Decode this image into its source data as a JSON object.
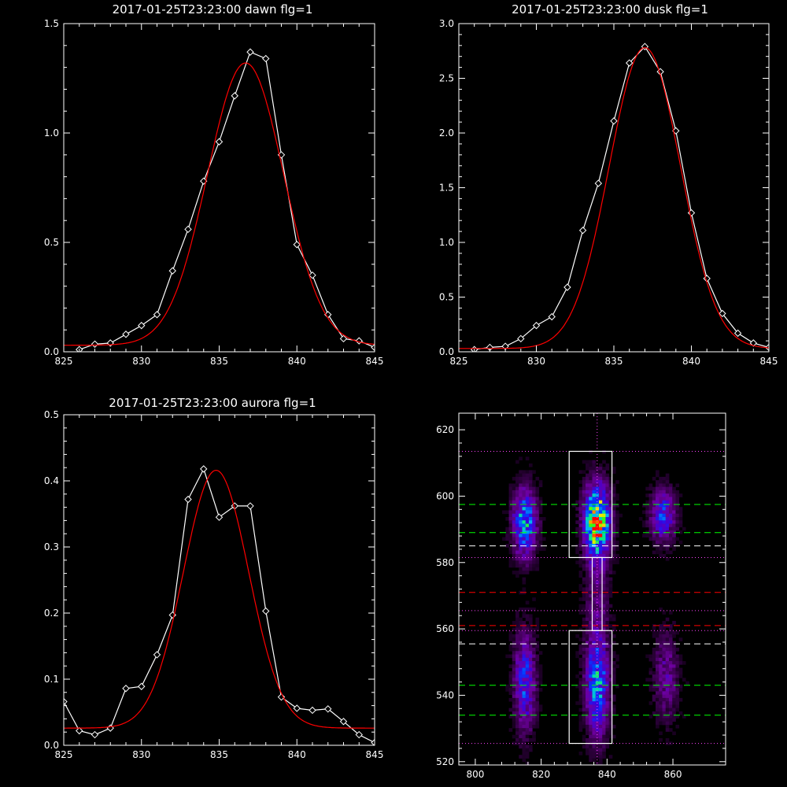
{
  "chart_data": [
    {
      "type": "line",
      "title": "2017-01-25T23:23:00 dawn flg=1",
      "xlim": [
        825,
        845
      ],
      "ylim": [
        0,
        1.5
      ],
      "xticks": [
        "825",
        "830",
        "835",
        "840",
        "845"
      ],
      "yticks": [
        "0.0",
        "0.5",
        "1.0",
        "1.5"
      ],
      "xtick_values": [
        825,
        830,
        835,
        840,
        845
      ],
      "ytick_values": [
        0,
        0.5,
        1.0,
        1.5
      ],
      "series": [
        {
          "style": "data",
          "color": "#ffffff",
          "x": [
            826,
            827,
            828,
            829,
            830,
            831,
            832,
            833,
            834,
            835,
            836,
            837,
            838,
            839,
            840,
            841,
            842,
            843,
            844,
            845
          ],
          "y": [
            0.01,
            0.035,
            0.04,
            0.08,
            0.12,
            0.17,
            0.37,
            0.56,
            0.78,
            0.96,
            1.17,
            1.37,
            1.34,
            0.9,
            0.49,
            0.35,
            0.17,
            0.06,
            0.05,
            0.02
          ]
        },
        {
          "style": "fit",
          "color": "#ff0000",
          "gauss": {
            "amp": 1.29,
            "center": 836.7,
            "sigma": 2.45,
            "offset": 0.03
          }
        }
      ]
    },
    {
      "type": "line",
      "title": "2017-01-25T23:23:00 dusk flg=1",
      "xlim": [
        825,
        845
      ],
      "ylim": [
        0,
        3.0
      ],
      "xticks": [
        "825",
        "830",
        "835",
        "840",
        "845"
      ],
      "yticks": [
        "0.0",
        "0.5",
        "1.0",
        "1.5",
        "2.0",
        "2.5",
        "3.0"
      ],
      "xtick_values": [
        825,
        830,
        835,
        840,
        845
      ],
      "ytick_values": [
        0,
        0.5,
        1.0,
        1.5,
        2.0,
        2.5,
        3.0
      ],
      "series": [
        {
          "style": "data",
          "color": "#ffffff",
          "x": [
            826,
            827,
            828,
            829,
            830,
            831,
            832,
            833,
            834,
            835,
            836,
            837,
            838,
            839,
            840,
            841,
            842,
            843,
            844,
            845
          ],
          "y": [
            0.02,
            0.04,
            0.05,
            0.12,
            0.24,
            0.32,
            0.59,
            1.11,
            1.54,
            2.11,
            2.64,
            2.79,
            2.56,
            2.02,
            1.27,
            0.67,
            0.35,
            0.17,
            0.08,
            0.04
          ]
        },
        {
          "style": "fit",
          "color": "#ff0000",
          "gauss": {
            "amp": 2.75,
            "center": 837.0,
            "sigma": 2.3,
            "offset": 0.03
          }
        }
      ]
    },
    {
      "type": "line",
      "title": "2017-01-25T23:23:00 aurora flg=1",
      "xlim": [
        825,
        845
      ],
      "ylim": [
        0,
        0.5
      ],
      "xticks": [
        "825",
        "830",
        "835",
        "840",
        "845"
      ],
      "yticks": [
        "0.0",
        "0.1",
        "0.2",
        "0.3",
        "0.4",
        "0.5"
      ],
      "xtick_values": [
        825,
        830,
        835,
        840,
        845
      ],
      "ytick_values": [
        0,
        0.1,
        0.2,
        0.3,
        0.4,
        0.5
      ],
      "series": [
        {
          "style": "data",
          "color": "#ffffff",
          "x": [
            825,
            826,
            827,
            828,
            829,
            830,
            831,
            832,
            833,
            834,
            835,
            836,
            837,
            838,
            839,
            840,
            841,
            842,
            843,
            844,
            845
          ],
          "y": [
            0.066,
            0.022,
            0.016,
            0.026,
            0.086,
            0.089,
            0.137,
            0.197,
            0.372,
            0.418,
            0.345,
            0.362,
            0.362,
            0.203,
            0.073,
            0.056,
            0.053,
            0.055,
            0.036,
            0.016,
            0.004
          ]
        },
        {
          "style": "fit",
          "color": "#ff0000",
          "gauss": {
            "amp": 0.39,
            "center": 834.8,
            "sigma": 2.1,
            "offset": 0.026
          }
        }
      ]
    },
    {
      "type": "heatmap",
      "xlim": [
        795,
        876
      ],
      "ylim": [
        519,
        625
      ],
      "xticks": [
        "800",
        "820",
        "840",
        "860"
      ],
      "yticks": [
        "520",
        "540",
        "560",
        "580",
        "600",
        "620"
      ],
      "xtick_values": [
        800,
        820,
        840,
        860
      ],
      "ytick_values": [
        520,
        540,
        560,
        580,
        600,
        620
      ],
      "colormap": "rainbow",
      "grid": {
        "nx": 80,
        "ny": 105,
        "seed": 7
      },
      "blobs": [
        {
          "x": 815,
          "y": 592,
          "sx": 2.4,
          "sy": 7.0,
          "amp": 0.62
        },
        {
          "x": 837,
          "y": 592,
          "sx": 2.6,
          "sy": 7.5,
          "amp": 1.0
        },
        {
          "x": 857,
          "y": 594,
          "sx": 2.6,
          "sy": 5.5,
          "amp": 0.42
        },
        {
          "x": 815,
          "y": 544,
          "sx": 2.2,
          "sy": 10.0,
          "amp": 0.44
        },
        {
          "x": 837,
          "y": 544,
          "sx": 2.4,
          "sy": 11.0,
          "amp": 0.58
        },
        {
          "x": 858,
          "y": 546,
          "sx": 2.6,
          "sy": 9.0,
          "amp": 0.24
        },
        {
          "x": 837,
          "y": 570,
          "sx": 2.4,
          "sy": 7.0,
          "amp": 0.15
        }
      ],
      "boxes": [
        {
          "x0": 828.5,
          "x1": 841.5,
          "y0": 581.5,
          "y1": 613.5
        },
        {
          "x0": 828.5,
          "x1": 841.5,
          "y0": 525.5,
          "y1": 559.5
        },
        {
          "x0": 835.5,
          "x1": 838.5,
          "y0": 559.5,
          "y1": 581.5
        }
      ],
      "hlines": [
        {
          "y": 613.5,
          "color": "#ff44ff",
          "dash": "dotted"
        },
        {
          "y": 597.5,
          "color": "#00ff00",
          "dash": "dashed"
        },
        {
          "y": 589.0,
          "color": "#00ff00",
          "dash": "dashed"
        },
        {
          "y": 585.0,
          "color": "#ffffff",
          "dash": "dashed"
        },
        {
          "y": 581.5,
          "color": "#ff44ff",
          "dash": "dotted"
        },
        {
          "y": 571.0,
          "color": "#ff0000",
          "dash": "dashed"
        },
        {
          "y": 565.5,
          "color": "#ff44ff",
          "dash": "dotted"
        },
        {
          "y": 561.0,
          "color": "#ff0000",
          "dash": "dashed"
        },
        {
          "y": 559.5,
          "color": "#ff44ff",
          "dash": "dotted"
        },
        {
          "y": 555.5,
          "color": "#ffffff",
          "dash": "dashed"
        },
        {
          "y": 543.0,
          "color": "#00ff00",
          "dash": "dashed"
        },
        {
          "y": 534.0,
          "color": "#00ff00",
          "dash": "dashed"
        },
        {
          "y": 525.5,
          "color": "#ff44ff",
          "dash": "dotted"
        }
      ],
      "vlines": [
        {
          "x": 837,
          "color": "#ff44ff",
          "dash": "dotted"
        }
      ]
    }
  ]
}
